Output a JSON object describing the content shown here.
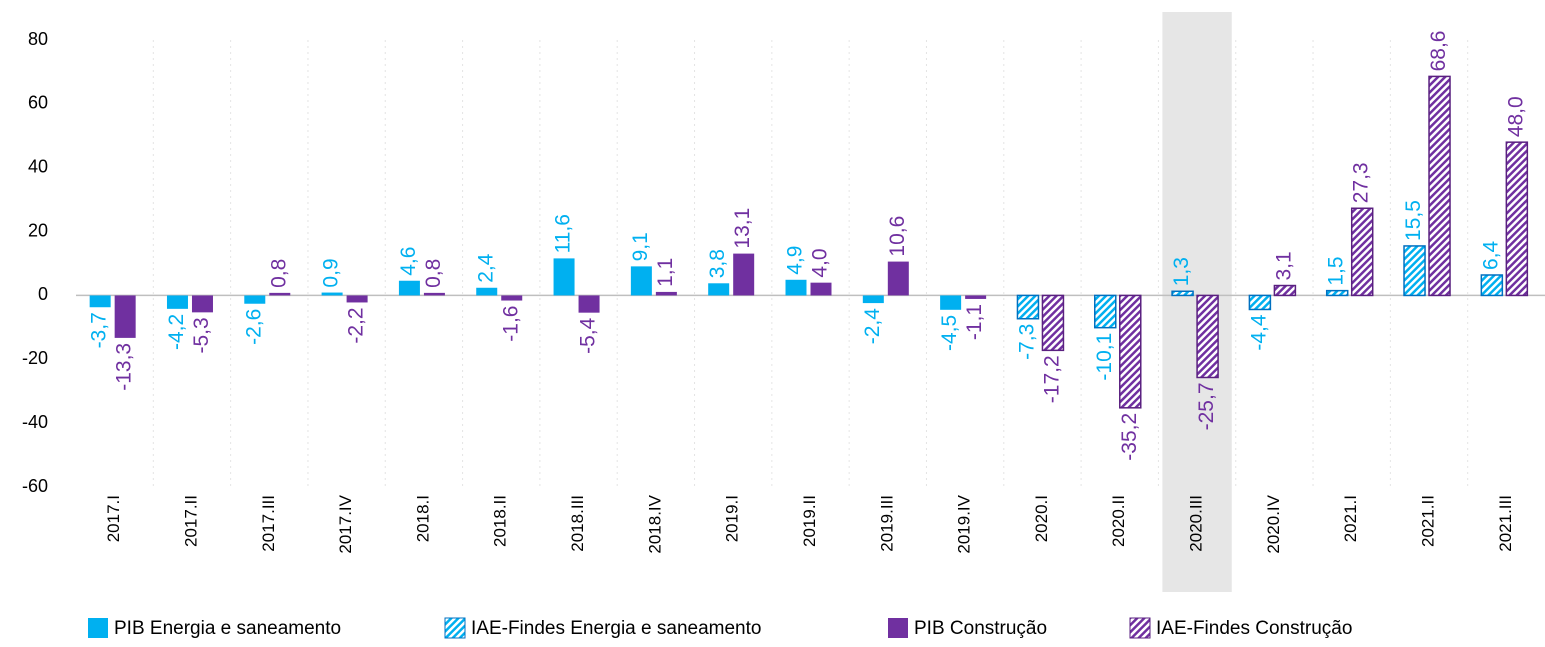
{
  "chart_data": {
    "type": "bar",
    "categories": [
      "2017.I",
      "2017.II",
      "2017.III",
      "2017.IV",
      "2018.I",
      "2018.II",
      "2018.III",
      "2018.IV",
      "2019.I",
      "2019.II",
      "2019.III",
      "2019.IV",
      "2020.I",
      "2020.II",
      "2020.III",
      "2020.IV",
      "2021.I",
      "2021.II",
      "2021.III"
    ],
    "series": [
      {
        "name": "PIB Energia e saneamento",
        "color": "#00b0f0",
        "pattern": "solid",
        "values": [
          -3.7,
          -4.2,
          -2.6,
          0.9,
          4.6,
          2.4,
          11.6,
          9.1,
          3.8,
          4.9,
          -2.4,
          -4.5,
          null,
          null,
          null,
          null,
          null,
          null,
          null
        ],
        "value_labels": [
          "-3,7",
          "-4,2",
          "-2,6",
          "0,9",
          "4,6",
          "2,4",
          "11,6",
          "9,1",
          "3,8",
          "4,9",
          "-2,4",
          "-4,5",
          null,
          null,
          null,
          null,
          null,
          null,
          null
        ]
      },
      {
        "name": "IAE-Findes Energia e saneamento",
        "color": "#00b0f0",
        "pattern": "hatch",
        "values": [
          null,
          null,
          null,
          null,
          null,
          null,
          null,
          null,
          null,
          null,
          null,
          null,
          -7.3,
          -10.1,
          1.3,
          -4.4,
          1.5,
          15.5,
          6.4
        ],
        "value_labels": [
          null,
          null,
          null,
          null,
          null,
          null,
          null,
          null,
          null,
          null,
          null,
          null,
          "-7,3",
          "-10,1",
          "1,3",
          "-4,4",
          "1,5",
          "15,5",
          "6,4"
        ]
      },
      {
        "name": "PIB Construção",
        "color": "#7030a0",
        "pattern": "solid",
        "values": [
          -13.3,
          -5.3,
          0.8,
          -2.2,
          0.8,
          -1.6,
          -5.4,
          1.1,
          13.1,
          4.0,
          10.6,
          -1.1,
          null,
          null,
          null,
          null,
          null,
          null,
          null
        ],
        "value_labels": [
          "-13,3",
          "-5,3",
          "0,8",
          "-2,2",
          "0,8",
          "-1,6",
          "-5,4",
          "1,1",
          "13,1",
          "4,0",
          "10,6",
          "-1,1",
          null,
          null,
          null,
          null,
          null,
          null,
          null
        ]
      },
      {
        "name": "IAE-Findes Construção",
        "color": "#7030a0",
        "pattern": "hatch",
        "values": [
          null,
          null,
          null,
          null,
          null,
          null,
          null,
          null,
          null,
          null,
          null,
          null,
          -17.2,
          -35.2,
          -25.7,
          3.1,
          27.3,
          68.6,
          48.0
        ],
        "value_labels": [
          null,
          null,
          null,
          null,
          null,
          null,
          null,
          null,
          null,
          null,
          null,
          null,
          "-17,2",
          "-35,2",
          "-25,7",
          "3,1",
          "27,3",
          "68,6",
          "48,0"
        ]
      }
    ],
    "ylim": [
      -60,
      80
    ],
    "yticks": [
      -60,
      -40,
      -20,
      0,
      20,
      40,
      60,
      80
    ],
    "highlight_category": "2020.III",
    "legend": "bottom"
  }
}
